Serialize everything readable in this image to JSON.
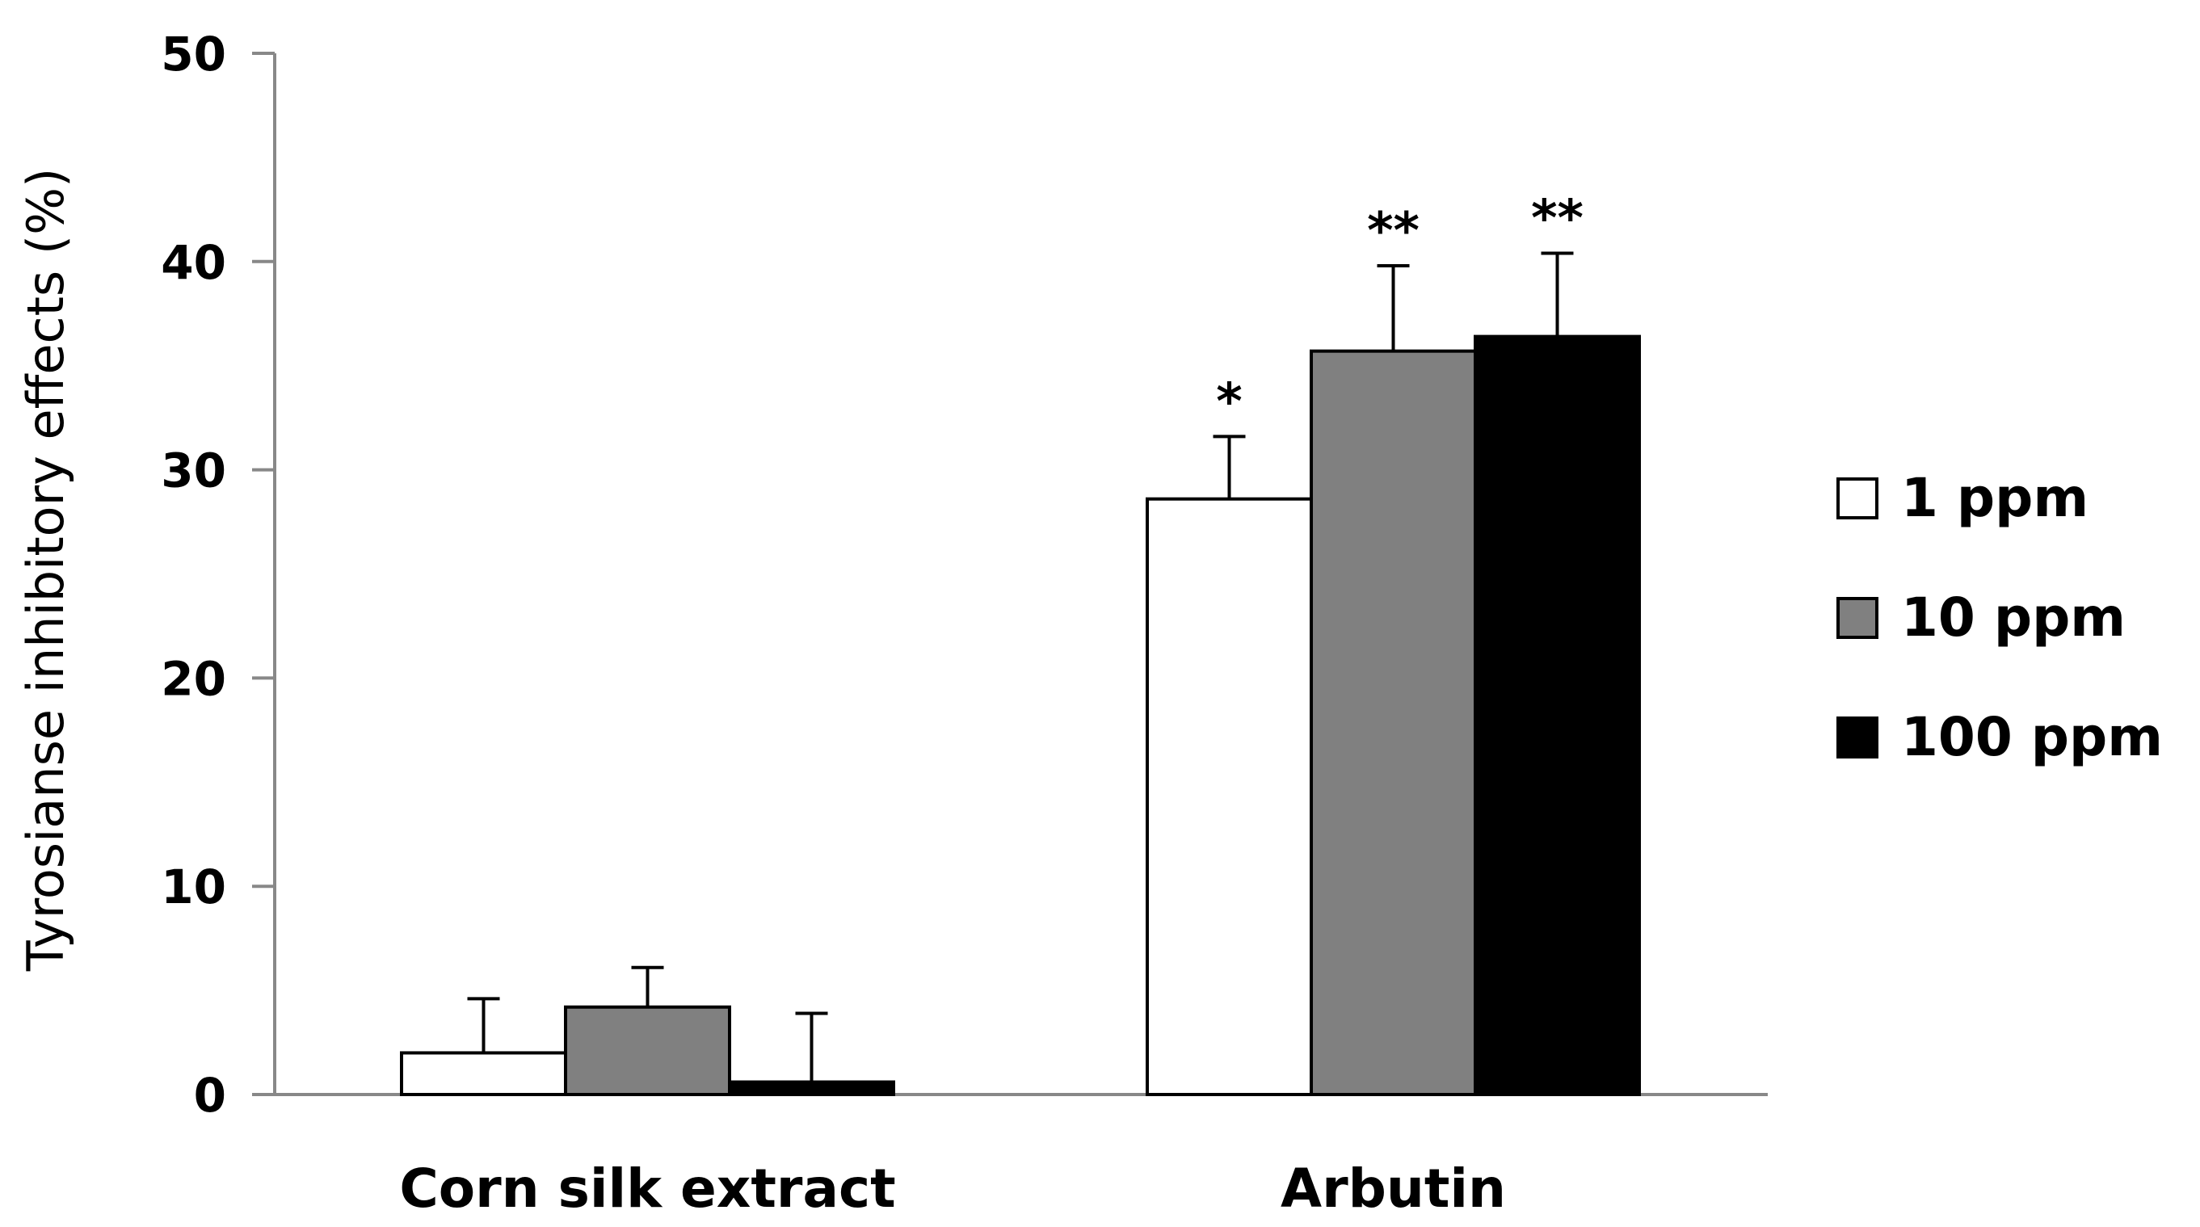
{
  "chart_data": {
    "type": "bar",
    "title": "",
    "xlabel": "",
    "ylabel": "Tyrosianse inhibitory effects (%)",
    "ylim": [
      0,
      50
    ],
    "yticks": [
      "0",
      "10",
      "20",
      "30",
      "40",
      "50"
    ],
    "categories": [
      "Corn silk extract",
      "Arbutin"
    ],
    "series": [
      {
        "name": "1 ppm",
        "color": "#ffffff",
        "values": [
          2.0,
          28.6
        ],
        "errors": [
          2.6,
          3.0
        ],
        "significance": [
          "",
          "*"
        ]
      },
      {
        "name": "10 ppm",
        "color": "#808080",
        "values": [
          4.2,
          35.7
        ],
        "errors": [
          1.9,
          4.1
        ],
        "significance": [
          "",
          "**"
        ]
      },
      {
        "name": "100 ppm",
        "color": "#000000",
        "values": [
          0.6,
          36.4
        ],
        "errors": [
          3.3,
          4.0
        ],
        "significance": [
          "",
          "**"
        ]
      }
    ],
    "grid": false,
    "legend_position": "right"
  }
}
